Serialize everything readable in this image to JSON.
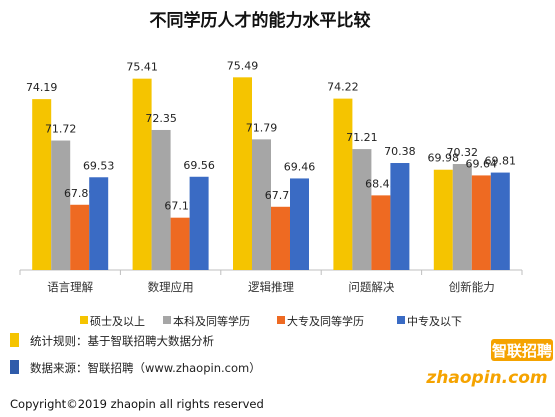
{
  "chart_data": {
    "type": "bar",
    "title": "不同学历人才的能力水平比较",
    "categories": [
      "语言理解",
      "数理应用",
      "逻辑推理",
      "问题解决",
      "创新能力"
    ],
    "series": [
      {
        "name": "硕士及以上",
        "color": "#F5C400",
        "values": [
          74.19,
          75.41,
          75.49,
          74.22,
          69.98
        ]
      },
      {
        "name": "本科及同等学历",
        "color": "#A6A6A6",
        "values": [
          71.72,
          72.35,
          71.79,
          71.21,
          70.32
        ]
      },
      {
        "name": "大专及同等学历",
        "color": "#EE6A22",
        "values": [
          67.89,
          67.12,
          67.77,
          68.45,
          69.64
        ]
      },
      {
        "name": "中专及以下",
        "color": "#3A6BC4",
        "values": [
          69.53,
          69.56,
          69.46,
          70.38,
          69.81
        ]
      }
    ],
    "ylim": [
      64,
      77
    ],
    "xlabel": "",
    "ylabel": "",
    "grid": false,
    "legend": "bottom"
  },
  "notes": [
    {
      "text": "统计规则：基于智联招聘大数据分析",
      "color": "#F5C400"
    },
    {
      "text": "数据来源：智联招聘（www.zhaopin.com）",
      "color": "#2F5BAA"
    }
  ],
  "copyright": "Copyright©2019 zhaopin all rights reserved",
  "logo": {
    "cn": "智联招聘",
    "en": "zhaopin.com"
  }
}
